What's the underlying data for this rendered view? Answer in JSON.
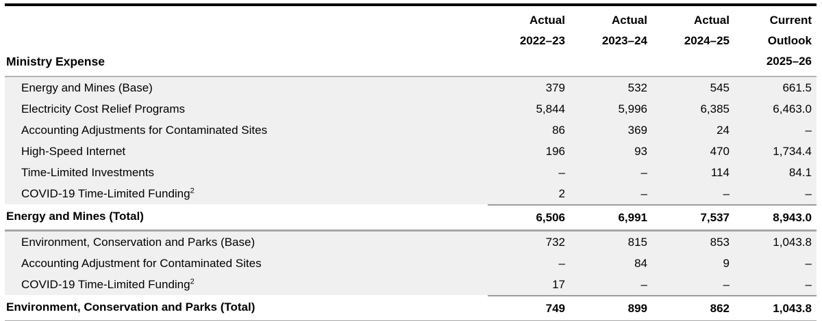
{
  "colors": {
    "top_rule": "#000000",
    "header_rule": "#b3b3b3",
    "sum_rule": "#9c9c9c",
    "section_rule": "#a6a6a6",
    "row_shade": "#f0f0f0",
    "text": "#000000"
  },
  "table": {
    "header": {
      "label": "Ministry Expense",
      "columns": [
        {
          "text": "Actual\n2022–23"
        },
        {
          "text": "Actual\n2023–24"
        },
        {
          "text": "Actual\n2024–25"
        },
        {
          "text": "Current\nOutlook\n2025–26"
        }
      ]
    },
    "sections": [
      {
        "rows": [
          {
            "label": "Energy and Mines (Base)",
            "sup": "",
            "values": [
              "379",
              "532",
              "545",
              "661.5"
            ]
          },
          {
            "label": "Electricity Cost Relief Programs",
            "sup": "",
            "values": [
              "5,844",
              "5,996",
              "6,385",
              "6,463.0"
            ]
          },
          {
            "label": "Accounting Adjustments for Contaminated Sites",
            "sup": "",
            "values": [
              "86",
              "369",
              "24",
              "–"
            ]
          },
          {
            "label": "High-Speed Internet",
            "sup": "",
            "values": [
              "196",
              "93",
              "470",
              "1,734.4"
            ]
          },
          {
            "label": "Time-Limited Investments",
            "sup": "",
            "values": [
              "–",
              "–",
              "114",
              "84.1"
            ]
          },
          {
            "label": "COVID-19 Time-Limited Funding",
            "sup": "2",
            "values": [
              "2",
              "–",
              "–",
              "–"
            ]
          }
        ],
        "total": {
          "label": "Energy and Mines (Total)",
          "sup": "",
          "values": [
            "6,506",
            "6,991",
            "7,537",
            "8,943.0"
          ]
        }
      },
      {
        "rows": [
          {
            "label": "Environment, Conservation and Parks (Base)",
            "sup": "",
            "values": [
              "732",
              "815",
              "853",
              "1,043.8"
            ]
          },
          {
            "label": "Accounting Adjustment for Contaminated Sites",
            "sup": "",
            "values": [
              "–",
              "84",
              "9",
              "–"
            ]
          },
          {
            "label": "COVID-19 Time-Limited Funding",
            "sup": "2",
            "values": [
              "17",
              "–",
              "–",
              "–"
            ]
          }
        ],
        "total": {
          "label": "Environment, Conservation and Parks (Total)",
          "sup": "",
          "values": [
            "749",
            "899",
            "862",
            "1,043.8"
          ]
        }
      }
    ]
  }
}
